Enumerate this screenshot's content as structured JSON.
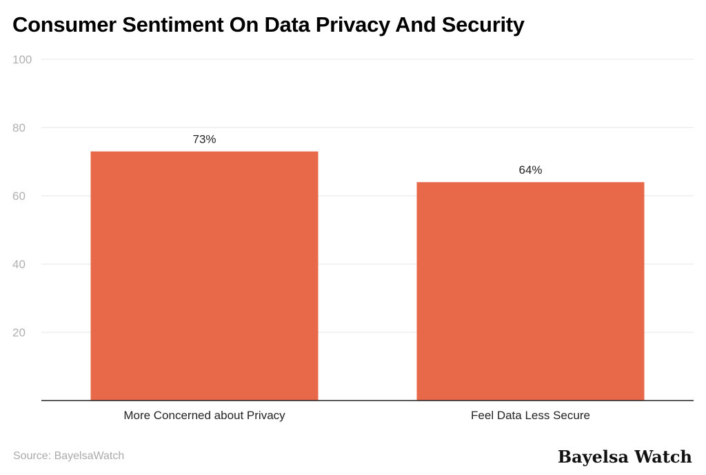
{
  "chart_data": {
    "type": "bar",
    "title": "Consumer Sentiment On Data Privacy And Security",
    "categories": [
      "More Concerned about Privacy",
      "Feel Data Less Secure"
    ],
    "values": [
      73,
      64
    ],
    "data_labels": [
      "73%",
      "64%"
    ],
    "xlabel": "",
    "ylabel": "",
    "ylim": [
      0,
      100
    ],
    "yticks": [
      20,
      40,
      60,
      80,
      100
    ],
    "grid": true,
    "bar_color": "#E8694A"
  },
  "source": "Source: BayelsaWatch",
  "logo": "Bayelsa Watch"
}
